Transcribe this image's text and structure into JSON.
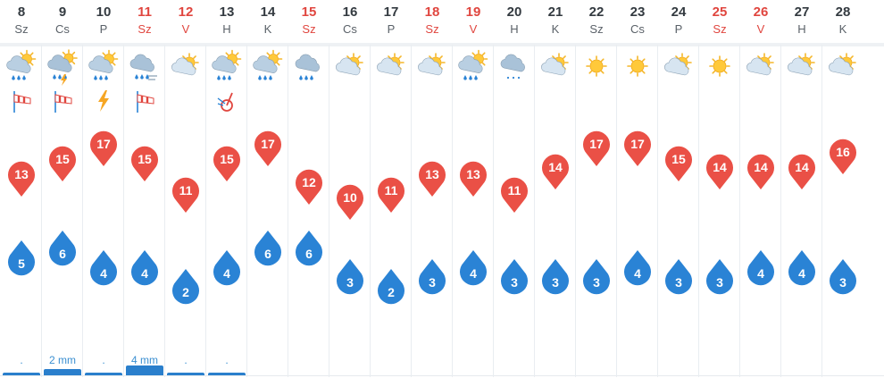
{
  "colors": {
    "max_temp": "#ea5046",
    "min_temp": "#2a83d5",
    "weekend": "#e0463f",
    "precip": "#2a7fcc"
  },
  "days": [
    {
      "date": "8",
      "dow": "Sz",
      "weekend": false,
      "max": "13",
      "min": "5",
      "precip": ".",
      "precip_mm": 0,
      "icon": "cloud-sun-rain-icon",
      "extra": "wind-sock-icon"
    },
    {
      "date": "9",
      "dow": "Cs",
      "weekend": false,
      "max": "15",
      "min": "6",
      "precip": "2 mm",
      "precip_mm": 2,
      "icon": "thunderstorm-icon",
      "extra": "wind-sock-icon"
    },
    {
      "date": "10",
      "dow": "P",
      "weekend": false,
      "max": "17",
      "min": "4",
      "precip": ".",
      "precip_mm": 0,
      "icon": "cloud-sun-rain-icon",
      "extra": "lightning-icon"
    },
    {
      "date": "11",
      "dow": "Sz",
      "weekend": true,
      "max": "15",
      "min": "4",
      "precip": "4 mm",
      "precip_mm": 4,
      "icon": "windy-rain-icon",
      "extra": "wind-sock-icon"
    },
    {
      "date": "12",
      "dow": "V",
      "weekend": true,
      "max": "11",
      "min": "2",
      "precip": ".",
      "precip_mm": 0,
      "icon": "partly-cloudy-icon",
      "extra": ""
    },
    {
      "date": "13",
      "dow": "H",
      "weekend": false,
      "max": "15",
      "min": "4",
      "precip": ".",
      "precip_mm": 0,
      "icon": "cloud-sun-rain-icon",
      "extra": "pressure-icon"
    },
    {
      "date": "14",
      "dow": "K",
      "weekend": false,
      "max": "17",
      "min": "6",
      "precip": "",
      "precip_mm": 0,
      "icon": "cloud-sun-rain-icon",
      "extra": ""
    },
    {
      "date": "15",
      "dow": "Sz",
      "weekend": true,
      "max": "12",
      "min": "6",
      "precip": "",
      "precip_mm": 0,
      "icon": "rain-cloud-icon",
      "extra": ""
    },
    {
      "date": "16",
      "dow": "Cs",
      "weekend": false,
      "max": "10",
      "min": "3",
      "precip": "",
      "precip_mm": 0,
      "icon": "partly-cloudy-icon",
      "extra": ""
    },
    {
      "date": "17",
      "dow": "P",
      "weekend": false,
      "max": "11",
      "min": "2",
      "precip": "",
      "precip_mm": 0,
      "icon": "partly-cloudy-icon",
      "extra": ""
    },
    {
      "date": "18",
      "dow": "Sz",
      "weekend": true,
      "max": "13",
      "min": "3",
      "precip": "",
      "precip_mm": 0,
      "icon": "partly-cloudy-icon",
      "extra": ""
    },
    {
      "date": "19",
      "dow": "V",
      "weekend": true,
      "max": "13",
      "min": "4",
      "precip": "",
      "precip_mm": 0,
      "icon": "cloud-sun-rain-icon",
      "extra": ""
    },
    {
      "date": "20",
      "dow": "H",
      "weekend": false,
      "max": "11",
      "min": "3",
      "precip": "",
      "precip_mm": 0,
      "icon": "drizzle-cloud-icon",
      "extra": ""
    },
    {
      "date": "21",
      "dow": "K",
      "weekend": false,
      "max": "14",
      "min": "3",
      "precip": "",
      "precip_mm": 0,
      "icon": "partly-cloudy-icon",
      "extra": ""
    },
    {
      "date": "22",
      "dow": "Sz",
      "weekend": false,
      "max": "17",
      "min": "3",
      "precip": "",
      "precip_mm": 0,
      "icon": "sunny-icon",
      "extra": ""
    },
    {
      "date": "23",
      "dow": "Cs",
      "weekend": false,
      "max": "17",
      "min": "4",
      "precip": "",
      "precip_mm": 0,
      "icon": "sunny-icon",
      "extra": ""
    },
    {
      "date": "24",
      "dow": "P",
      "weekend": false,
      "max": "15",
      "min": "3",
      "precip": "",
      "precip_mm": 0,
      "icon": "partly-cloudy-icon",
      "extra": ""
    },
    {
      "date": "25",
      "dow": "Sz",
      "weekend": true,
      "max": "14",
      "min": "3",
      "precip": "",
      "precip_mm": 0,
      "icon": "sunny-icon",
      "extra": ""
    },
    {
      "date": "26",
      "dow": "V",
      "weekend": true,
      "max": "14",
      "min": "4",
      "precip": "",
      "precip_mm": 0,
      "icon": "partly-cloudy-icon",
      "extra": ""
    },
    {
      "date": "27",
      "dow": "H",
      "weekend": false,
      "max": "14",
      "min": "4",
      "precip": "",
      "precip_mm": 0,
      "icon": "partly-cloudy-icon",
      "extra": ""
    },
    {
      "date": "28",
      "dow": "K",
      "weekend": false,
      "max": "16",
      "min": "3",
      "precip": "",
      "precip_mm": 0,
      "icon": "partly-cloudy-icon",
      "extra": ""
    }
  ]
}
